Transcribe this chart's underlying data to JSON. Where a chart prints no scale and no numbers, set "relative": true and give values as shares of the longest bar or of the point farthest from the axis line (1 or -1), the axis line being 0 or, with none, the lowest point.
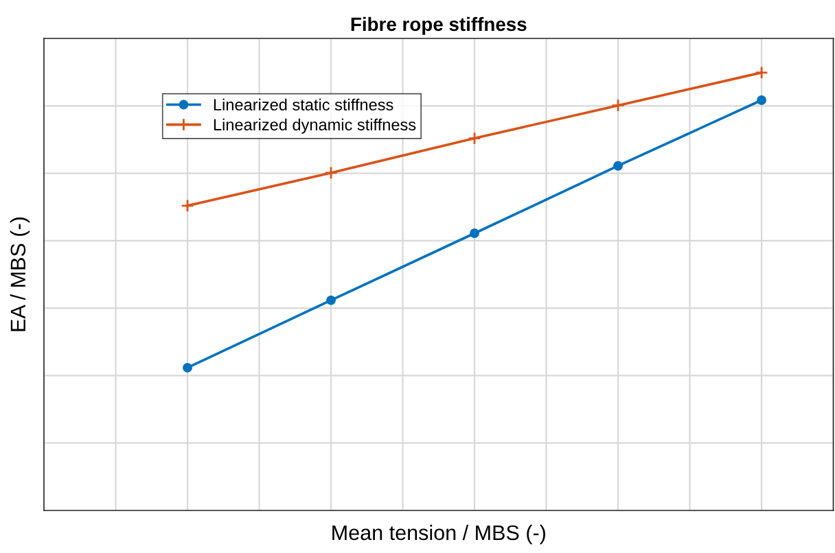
{
  "chart_data": {
    "type": "line",
    "title": "Fibre rope stiffness",
    "xlabel": "Mean tension / MBS (-)",
    "ylabel": "EA / MBS (-)",
    "relative": true,
    "grid": true,
    "legend": "top left",
    "line_style": "solid",
    "categories": [
      null,
      null,
      null,
      null,
      null
    ],
    "series": [
      {
        "name": "Linearized static stiffness",
        "color": "#0072bd",
        "marker": "circle",
        "values": [
          0.326,
          0.48,
          0.633,
          0.787,
          0.937
        ]
      },
      {
        "name": "Linearized dynamic stiffness",
        "color": "#d95319",
        "marker": "cross",
        "values": [
          0.696,
          0.771,
          0.85,
          0.925,
          1.0
        ]
      }
    ]
  }
}
